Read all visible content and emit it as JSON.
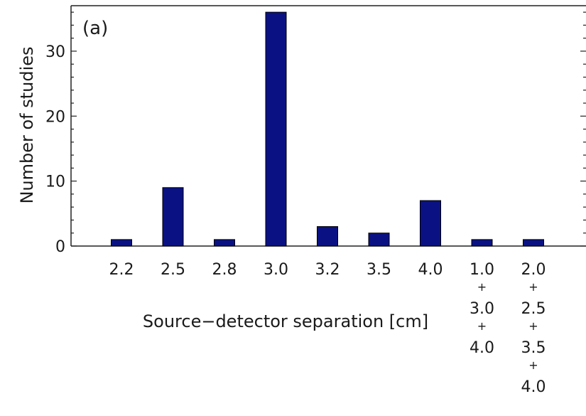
{
  "chart_data": {
    "type": "bar",
    "panel_label": "(a)",
    "xlabel": "Source−detector separation [cm]",
    "ylabel": "Number of studies",
    "ylim": [
      0,
      37
    ],
    "yticks": [
      0,
      10,
      20,
      30
    ],
    "categories": [
      [
        "2.2"
      ],
      [
        "2.5"
      ],
      [
        "2.8"
      ],
      [
        "3.0"
      ],
      [
        "3.2"
      ],
      [
        "3.5"
      ],
      [
        "4.0"
      ],
      [
        "1.0",
        "+",
        "3.0",
        "+",
        "4.0"
      ],
      [
        "2.0",
        "+",
        "2.5",
        "+",
        "3.5",
        "+",
        "4.0"
      ]
    ],
    "values": [
      1,
      9,
      1,
      36,
      3,
      2,
      7,
      1,
      1
    ],
    "bar_color": "#0a1283",
    "grid": false,
    "legend": "none"
  }
}
